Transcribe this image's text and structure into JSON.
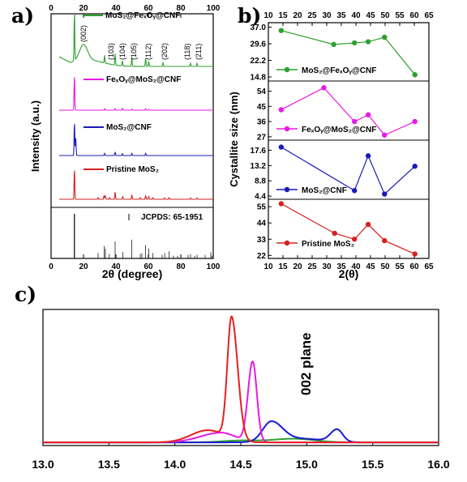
{
  "chart_data": [
    {
      "panel": "a)",
      "type": "line",
      "xlabel": "2θ (degree)",
      "ylabel": "Intensity (a.u.)",
      "xlim": [
        0,
        100
      ],
      "xticks": [
        0,
        20,
        40,
        60,
        80,
        100
      ],
      "top_xticks": [
        0,
        20,
        40,
        60,
        80,
        100
      ],
      "series": [
        {
          "name": "MoS2@FexOy@CNF",
          "legend_text": "MoS₂@FeₓOᵧ@CNF",
          "color": "#2ca02c",
          "peaks": [
            [
              14.4,
              1.0
            ],
            [
              20,
              0.3
            ],
            [
              33,
              0.15
            ],
            [
              39.5,
              0.22
            ],
            [
              44,
              0.1
            ],
            [
              49.8,
              0.18
            ],
            [
              58.3,
              0.16
            ],
            [
              60.2,
              0.1
            ],
            [
              69,
              0.08
            ],
            [
              86,
              0.06
            ],
            [
              90,
              0.06
            ]
          ]
        },
        {
          "name": "FexOy@MoS2@CNF",
          "legend_text": "FeₓOᵧ@MoS₂@CNF",
          "color": "#e619e6",
          "peaks": [
            [
              14.4,
              1.0
            ],
            [
              33,
              0.04
            ],
            [
              39.5,
              0.04
            ],
            [
              44,
              0.05
            ],
            [
              49.8,
              0.03
            ],
            [
              58.3,
              0.04
            ],
            [
              60.2,
              0.02
            ]
          ]
        },
        {
          "name": "MoS2@CNF",
          "legend_text": "MoS₂@CNF",
          "color": "#1a1ab8",
          "peaks": [
            [
              14.4,
              1.0
            ],
            [
              15.2,
              0.5
            ],
            [
              33,
              0.06
            ],
            [
              39.5,
              0.1
            ],
            [
              44,
              0.05
            ],
            [
              49.8,
              0.06
            ],
            [
              58.3,
              0.06
            ]
          ]
        },
        {
          "name": "Pristine MoS2",
          "legend_text": "Pristine MoS₂",
          "color": "#d62020",
          "peaks": [
            [
              14.4,
              1.0
            ],
            [
              29,
              0.05
            ],
            [
              32.7,
              0.12
            ],
            [
              33.5,
              0.1
            ],
            [
              36,
              0.05
            ],
            [
              39.5,
              0.22
            ],
            [
              44.2,
              0.08
            ],
            [
              49.8,
              0.14
            ],
            [
              55,
              0.05
            ],
            [
              58.3,
              0.12
            ],
            [
              60.2,
              0.08
            ],
            [
              62.8,
              0.05
            ],
            [
              70,
              0.04
            ],
            [
              72.8,
              0.05
            ],
            [
              86,
              0.04
            ],
            [
              90,
              0.04
            ]
          ]
        }
      ],
      "reference": {
        "label": "JCPDS: 65-1951",
        "lines": [
          [
            14.4,
            1.0
          ],
          [
            29.0,
            0.12
          ],
          [
            32.7,
            0.28
          ],
          [
            33.5,
            0.22
          ],
          [
            35.9,
            0.1
          ],
          [
            39.5,
            0.38
          ],
          [
            44.2,
            0.14
          ],
          [
            49.8,
            0.42
          ],
          [
            55.0,
            0.1
          ],
          [
            56.0,
            0.12
          ],
          [
            58.3,
            0.3
          ],
          [
            60.2,
            0.22
          ],
          [
            62.8,
            0.12
          ],
          [
            68.5,
            0.08
          ],
          [
            70.1,
            0.12
          ],
          [
            72.8,
            0.16
          ],
          [
            75.5,
            0.06
          ],
          [
            78.0,
            0.06
          ],
          [
            84.5,
            0.08
          ],
          [
            86.0,
            0.1
          ],
          [
            88.5,
            0.06
          ],
          [
            90.0,
            0.08
          ],
          [
            95.0,
            0.08
          ],
          [
            98.5,
            0.14
          ],
          [
            99.3,
            0.06
          ]
        ]
      },
      "annotations": [
        "(002)",
        "(103)",
        "(104)",
        "(105)",
        "(112)",
        "(202)",
        "(118)",
        "(211)"
      ],
      "annotation_x": [
        20,
        37,
        44,
        51,
        60,
        70,
        84,
        91
      ]
    },
    {
      "panel": "b)",
      "type": "line",
      "xlabel": "2(θ)",
      "ylabel": "Cystallite size (nm)",
      "xlim": [
        10,
        65
      ],
      "xticks": [
        10,
        15,
        20,
        25,
        30,
        35,
        40,
        45,
        50,
        55,
        60,
        65
      ],
      "series": [
        {
          "name": "MoS2@FexOy@CNF",
          "legend_text": "MoS₂@FeₓOᵧ@CNF",
          "color": "#2ca02c",
          "x": [
            14.4,
            32.4,
            39.5,
            44.2,
            49.8,
            60.2
          ],
          "y": [
            35.5,
            29.3,
            30.0,
            30.5,
            32.5,
            15.8
          ],
          "ylim": [
            13,
            39
          ],
          "yticks": [
            14.8,
            22.2,
            29.6,
            37.0
          ],
          "ytick_labels": [
            "14.8",
            "22.2",
            "29.6",
            "37.0"
          ]
        },
        {
          "name": "FexOy@MoS2@CNF",
          "legend_text": "FeₓOᵧ@MoS₂@CNF",
          "color": "#e619e6",
          "x": [
            14.4,
            29.0,
            39.5,
            44.2,
            49.8,
            60.2
          ],
          "y": [
            43,
            56,
            36,
            40,
            28,
            36
          ],
          "ylim": [
            25,
            60
          ],
          "yticks": [
            27,
            36,
            45,
            54
          ],
          "ytick_labels": [
            "27",
            "36",
            "45",
            "54"
          ]
        },
        {
          "name": "MoS2@CNF",
          "legend_text": "MoS₂@CNF",
          "color": "#1a1ab8",
          "x": [
            14.4,
            39.5,
            44.2,
            49.8,
            60.2
          ],
          "y": [
            18.5,
            6.0,
            16.0,
            5.0,
            13.0
          ],
          "ylim": [
            3.5,
            20.5
          ],
          "yticks": [
            4.4,
            8.8,
            13.2,
            17.6
          ],
          "ytick_labels": [
            "4.4",
            "8.8",
            "13.2",
            "17.6"
          ]
        },
        {
          "name": "Pristine MoS2",
          "legend_text": "Pristine MoS₂",
          "color": "#d62020",
          "x": [
            14.4,
            32.7,
            39.5,
            44.2,
            49.8,
            60.2
          ],
          "y": [
            57,
            37,
            33,
            43,
            32,
            23
          ],
          "ylim": [
            20,
            60
          ],
          "yticks": [
            22,
            33,
            44,
            55
          ],
          "ytick_labels": [
            "22",
            "33",
            "44",
            "55"
          ]
        }
      ]
    },
    {
      "panel": "c)",
      "type": "line",
      "xlim": [
        13.0,
        16.0
      ],
      "xticks": [
        13.0,
        13.5,
        14.0,
        14.5,
        15.0,
        15.5,
        16.0
      ],
      "xtick_labels": [
        "13.0",
        "13.5",
        "14.0",
        "14.5",
        "15.0",
        "15.5",
        "16.0"
      ],
      "annotation": "002 plane",
      "series": [
        {
          "name": "Pristine MoS2",
          "color": "#e52020",
          "peaks": [
            [
              14.43,
              0.045,
              0.065,
              1.0
            ],
            [
              14.25,
              0.18,
              0.18,
              0.1
            ]
          ]
        },
        {
          "name": "FexOy@MoS2@CNF",
          "color": "#e619e6",
          "peaks": [
            [
              14.59,
              0.05,
              0.045,
              0.66
            ],
            [
              14.35,
              0.22,
              0.15,
              0.08
            ]
          ]
        },
        {
          "name": "MoS2@CNF",
          "color": "#1a1ad0",
          "peaks": [
            [
              14.73,
              0.09,
              0.12,
              0.16
            ],
            [
              15.23,
              0.07,
              0.06,
              0.1
            ],
            [
              14.95,
              0.25,
              0.25,
              0.03
            ]
          ]
        },
        {
          "name": "MoS2@FexOy@CNF",
          "color": "#2ca02c",
          "peaks": [
            [
              14.9,
              0.22,
              0.22,
              0.03
            ],
            [
              14.5,
              0.2,
              0.2,
              0.015
            ]
          ]
        }
      ]
    }
  ]
}
